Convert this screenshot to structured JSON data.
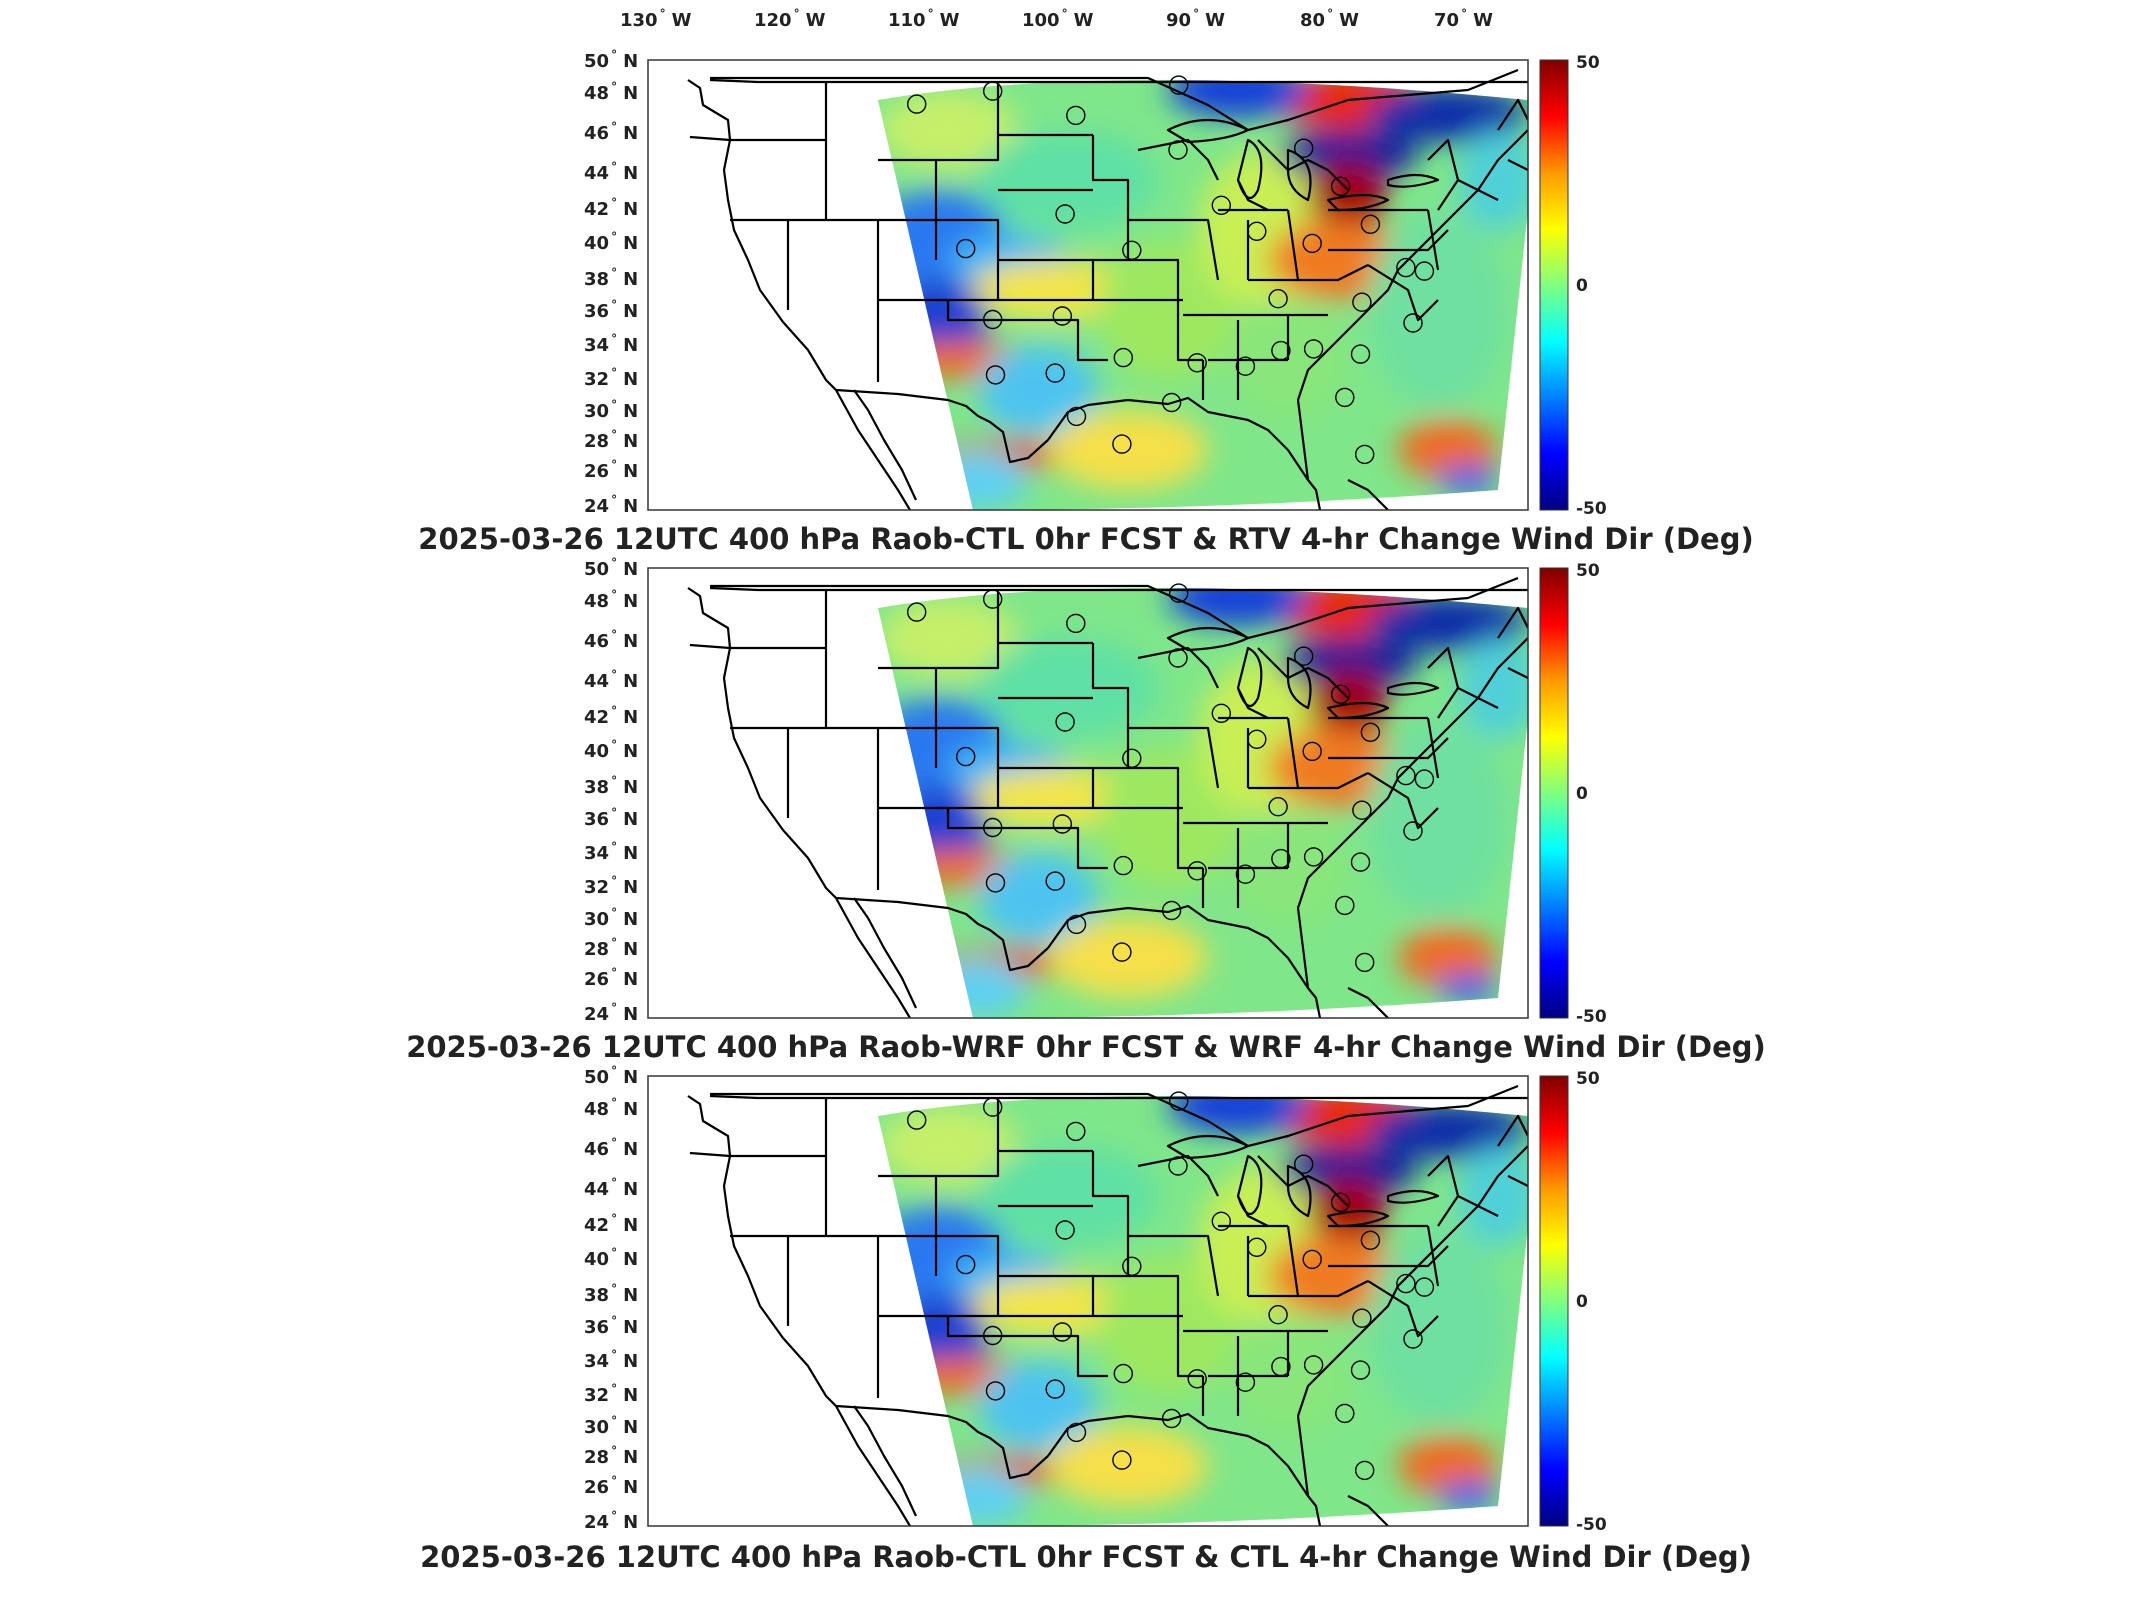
{
  "longitude_labels": [
    {
      "deg": "130",
      "hem": "W"
    },
    {
      "deg": "120",
      "hem": "W"
    },
    {
      "deg": "110",
      "hem": "W"
    },
    {
      "deg": "100",
      "hem": "W"
    },
    {
      "deg": "90",
      "hem": "W"
    },
    {
      "deg": "80",
      "hem": "W"
    },
    {
      "deg": "70",
      "hem": "W"
    }
  ],
  "latitude_labels": [
    {
      "deg": "50",
      "hem": "N"
    },
    {
      "deg": "48",
      "hem": "N"
    },
    {
      "deg": "46",
      "hem": "N"
    },
    {
      "deg": "44",
      "hem": "N"
    },
    {
      "deg": "42",
      "hem": "N"
    },
    {
      "deg": "40",
      "hem": "N"
    },
    {
      "deg": "38",
      "hem": "N"
    },
    {
      "deg": "36",
      "hem": "N"
    },
    {
      "deg": "34",
      "hem": "N"
    },
    {
      "deg": "32",
      "hem": "N"
    },
    {
      "deg": "30",
      "hem": "N"
    },
    {
      "deg": "28",
      "hem": "N"
    },
    {
      "deg": "26",
      "hem": "N"
    },
    {
      "deg": "24",
      "hem": "N"
    }
  ],
  "colorbar": {
    "ticks": [
      "50",
      "0",
      "-50"
    ],
    "colors": [
      "#800000",
      "#ff0000",
      "#ff9900",
      "#ffff00",
      "#80ff80",
      "#00ffff",
      "#0080ff",
      "#0000ff",
      "#000080"
    ]
  },
  "panels": [
    {
      "title": "2025-03-26 12UTC 400 hPa Raob-CTL 0hr FCST & RTV 4-hr Change Wind Dir (Deg)"
    },
    {
      "title": "2025-03-26 12UTC 400 hPa Raob-WRF 0hr FCST & WRF 4-hr Change Wind Dir (Deg)"
    },
    {
      "title": "2025-03-26 12UTC 400 hPa Raob-CTL 0hr FCST & CTL 4-hr Change Wind Dir (Deg)"
    }
  ],
  "stations": [
    [
      -111.95,
      47.45
    ],
    [
      -106.6,
      48.2
    ],
    [
      -100.75,
      46.8
    ],
    [
      -93.5,
      48.55
    ],
    [
      -122.2,
      47.6
    ],
    [
      -93.55,
      44.8
    ],
    [
      -84.7,
      44.9
    ],
    [
      -82.1,
      42.7
    ],
    [
      -90.5,
      41.6
    ],
    [
      -101.5,
      41.1
    ],
    [
      -108.5,
      39.1
    ],
    [
      -96.8,
      39.0
    ],
    [
      -88.0,
      40.1
    ],
    [
      -84.1,
      39.4
    ],
    [
      -80.0,
      40.5
    ],
    [
      -77.5,
      38.0
    ],
    [
      -76.2,
      37.8
    ],
    [
      -86.5,
      36.2
    ],
    [
      -80.6,
      36.0
    ],
    [
      -106.6,
      35.0
    ],
    [
      -101.7,
      35.2
    ],
    [
      -97.4,
      32.8
    ],
    [
      -92.2,
      32.5
    ],
    [
      -88.8,
      32.3
    ],
    [
      -86.3,
      33.2
    ],
    [
      -84.0,
      33.3
    ],
    [
      -80.7,
      33.0
    ],
    [
      -77.0,
      34.8
    ],
    [
      -106.4,
      31.8
    ],
    [
      -102.2,
      31.9
    ],
    [
      -100.7,
      29.4
    ],
    [
      -97.5,
      27.8
    ],
    [
      -81.8,
      30.5
    ],
    [
      -80.4,
      27.2
    ],
    [
      -94.0,
      30.2
    ]
  ]
}
